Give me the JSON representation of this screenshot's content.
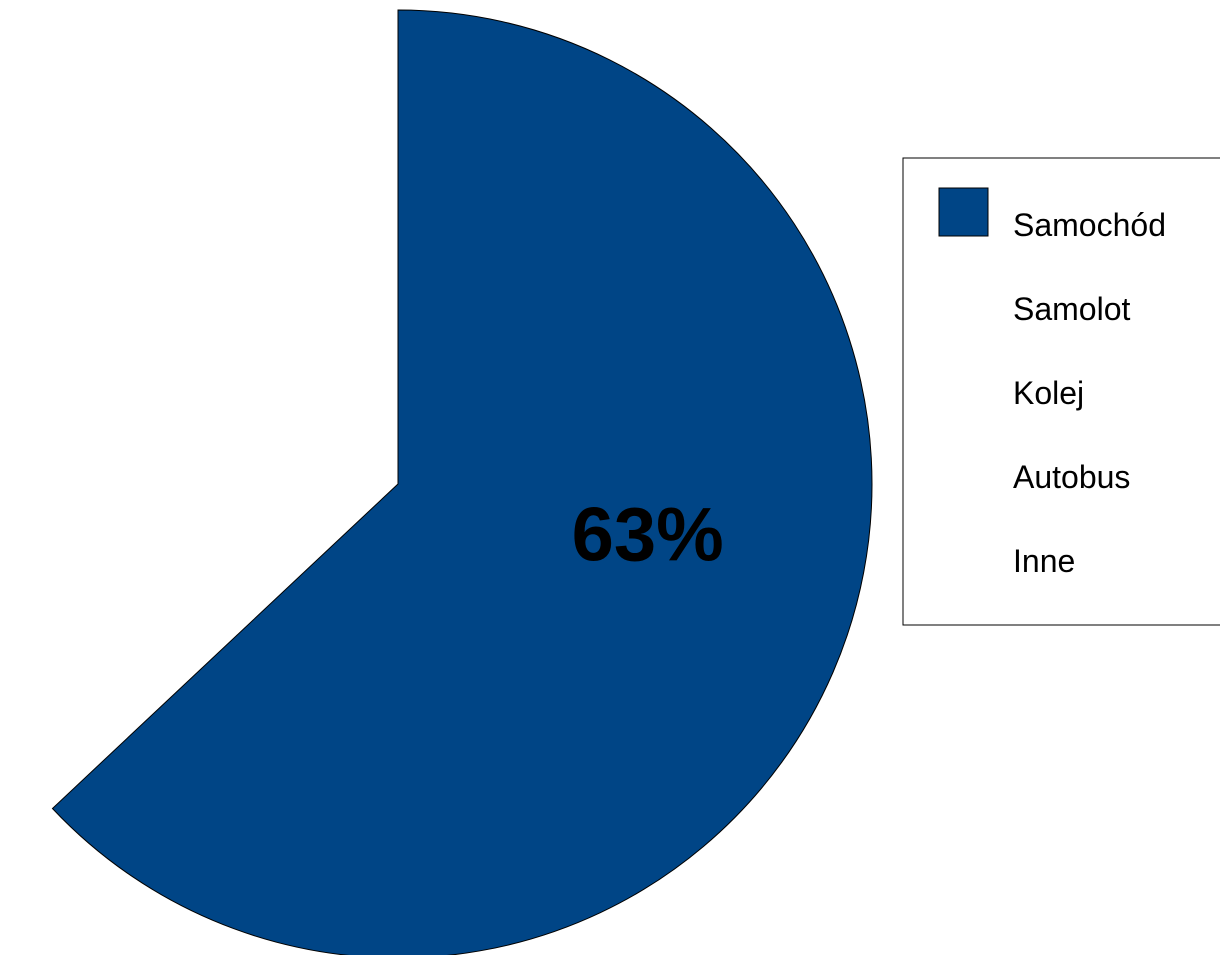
{
  "chart_data": {
    "type": "pie",
    "slices": [
      {
        "label": "Samochód",
        "value": 63,
        "color": "#004586",
        "shown": true
      },
      {
        "label": "Samolot",
        "value": 0,
        "color": "#ffffff",
        "shown": false
      },
      {
        "label": "Kolej",
        "value": 0,
        "color": "#ffffff",
        "shown": false
      },
      {
        "label": "Autobus",
        "value": 0,
        "color": "#ffffff",
        "shown": false
      },
      {
        "label": "Inne",
        "value": 0,
        "color": "#ffffff",
        "shown": false
      }
    ],
    "data_labels": [
      "63%"
    ],
    "legend": {
      "placement": "right",
      "entries": [
        "Samochód",
        "Samolot",
        "Kolej",
        "Autobus",
        "Inne"
      ]
    },
    "colors": {
      "primary": "#004586",
      "outline": "#000000"
    }
  }
}
